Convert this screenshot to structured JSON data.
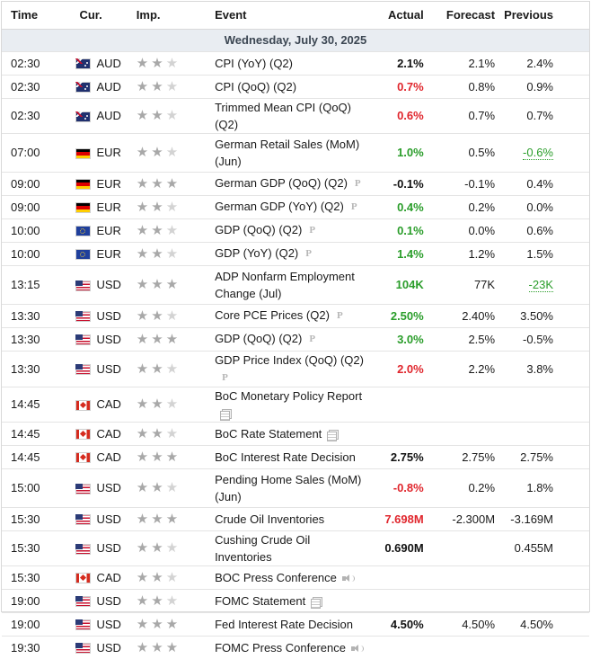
{
  "headers": {
    "time": "Time",
    "currency": "Cur.",
    "importance": "Imp.",
    "event": "Event",
    "actual": "Actual",
    "forecast": "Forecast",
    "previous": "Previous"
  },
  "date_row": "Wednesday, July 30, 2025",
  "colors": {
    "green": "#2a9d2a",
    "red": "#e0262d",
    "date_bg": "#e9edf2"
  },
  "rows": [
    {
      "time": "02:30",
      "cur": "AUD",
      "flag": "au-flag",
      "stars": 2,
      "event": "CPI (YoY) (Q2)",
      "icon": "",
      "actual": "2.1%",
      "actual_color": "black",
      "forecast": "2.1%",
      "previous": "2.4%",
      "prev_revised": false,
      "tall": false
    },
    {
      "time": "02:30",
      "cur": "AUD",
      "flag": "au-flag",
      "stars": 2,
      "event": "CPI (QoQ) (Q2)",
      "icon": "",
      "actual": "0.7%",
      "actual_color": "red",
      "forecast": "0.8%",
      "previous": "0.9%",
      "prev_revised": false,
      "tall": false
    },
    {
      "time": "02:30",
      "cur": "AUD",
      "flag": "au-flag",
      "stars": 2,
      "event": "Trimmed Mean CPI (QoQ) (Q2)",
      "icon": "",
      "actual": "0.6%",
      "actual_color": "red",
      "forecast": "0.7%",
      "previous": "0.7%",
      "prev_revised": false,
      "tall": false
    },
    {
      "time": "07:00",
      "cur": "EUR",
      "flag": "de-flag",
      "stars": 2,
      "event": "German Retail Sales (MoM) (Jun)",
      "icon": "",
      "actual": "1.0%",
      "actual_color": "green",
      "forecast": "0.5%",
      "previous": "-0.6%",
      "prev_revised": true,
      "tall": true
    },
    {
      "time": "09:00",
      "cur": "EUR",
      "flag": "de-flag",
      "stars": 3,
      "event": "German GDP (QoQ) (Q2)",
      "icon": "preliminary-icon",
      "actual": "-0.1%",
      "actual_color": "black",
      "forecast": "-0.1%",
      "previous": "0.4%",
      "prev_revised": false,
      "tall": false
    },
    {
      "time": "09:00",
      "cur": "EUR",
      "flag": "de-flag",
      "stars": 2,
      "event": "German GDP (YoY) (Q2)",
      "icon": "preliminary-icon",
      "actual": "0.4%",
      "actual_color": "green",
      "forecast": "0.2%",
      "previous": "0.0%",
      "prev_revised": false,
      "tall": false
    },
    {
      "time": "10:00",
      "cur": "EUR",
      "flag": "eu-flag",
      "stars": 2,
      "event": "GDP (QoQ) (Q2)",
      "icon": "preliminary-icon",
      "actual": "0.1%",
      "actual_color": "green",
      "forecast": "0.0%",
      "previous": "0.6%",
      "prev_revised": false,
      "tall": false
    },
    {
      "time": "10:00",
      "cur": "EUR",
      "flag": "eu-flag",
      "stars": 2,
      "event": "GDP (YoY) (Q2)",
      "icon": "preliminary-icon",
      "actual": "1.4%",
      "actual_color": "green",
      "forecast": "1.2%",
      "previous": "1.5%",
      "prev_revised": false,
      "tall": false
    },
    {
      "time": "13:15",
      "cur": "USD",
      "flag": "us-flag",
      "stars": 3,
      "event": "ADP Nonfarm Employment Change (Jul)",
      "icon": "",
      "actual": "104K",
      "actual_color": "green",
      "forecast": "77K",
      "previous": "-23K",
      "prev_revised": true,
      "tall": true
    },
    {
      "time": "13:30",
      "cur": "USD",
      "flag": "us-flag",
      "stars": 2,
      "event": "Core PCE Prices (Q2)",
      "icon": "preliminary-icon",
      "actual": "2.50%",
      "actual_color": "green",
      "forecast": "2.40%",
      "previous": "3.50%",
      "prev_revised": false,
      "tall": false
    },
    {
      "time": "13:30",
      "cur": "USD",
      "flag": "us-flag",
      "stars": 3,
      "event": "GDP (QoQ) (Q2)",
      "icon": "preliminary-icon",
      "actual": "3.0%",
      "actual_color": "green",
      "forecast": "2.5%",
      "previous": "-0.5%",
      "prev_revised": false,
      "tall": false
    },
    {
      "time": "13:30",
      "cur": "USD",
      "flag": "us-flag",
      "stars": 2,
      "event": "GDP Price Index (QoQ) (Q2)",
      "icon": "preliminary-icon",
      "actual": "2.0%",
      "actual_color": "red",
      "forecast": "2.2%",
      "previous": "3.8%",
      "prev_revised": false,
      "tall": false
    },
    {
      "time": "14:45",
      "cur": "CAD",
      "flag": "ca-flag",
      "stars": 2,
      "event": "BoC Monetary Policy Report",
      "icon": "document-icon",
      "actual": "",
      "actual_color": "black",
      "forecast": "",
      "previous": "",
      "prev_revised": false,
      "tall": false
    },
    {
      "time": "14:45",
      "cur": "CAD",
      "flag": "ca-flag",
      "stars": 2,
      "event": "BoC Rate Statement",
      "icon": "document-icon",
      "actual": "",
      "actual_color": "black",
      "forecast": "",
      "previous": "",
      "prev_revised": false,
      "tall": false
    },
    {
      "time": "14:45",
      "cur": "CAD",
      "flag": "ca-flag",
      "stars": 3,
      "event": "BoC Interest Rate Decision",
      "icon": "",
      "actual": "2.75%",
      "actual_color": "black",
      "forecast": "2.75%",
      "previous": "2.75%",
      "prev_revised": false,
      "tall": false
    },
    {
      "time": "15:00",
      "cur": "USD",
      "flag": "us-flag",
      "stars": 2,
      "event": "Pending Home Sales (MoM) (Jun)",
      "icon": "",
      "actual": "-0.8%",
      "actual_color": "red",
      "forecast": "0.2%",
      "previous": "1.8%",
      "prev_revised": false,
      "tall": true
    },
    {
      "time": "15:30",
      "cur": "USD",
      "flag": "us-flag",
      "stars": 3,
      "event": "Crude Oil Inventories",
      "icon": "",
      "actual": "7.698M",
      "actual_color": "red",
      "forecast": "-2.300M",
      "previous": "-3.169M",
      "prev_revised": false,
      "tall": false
    },
    {
      "time": "15:30",
      "cur": "USD",
      "flag": "us-flag",
      "stars": 2,
      "event": "Cushing Crude Oil Inventories",
      "icon": "",
      "actual": "0.690M",
      "actual_color": "black",
      "forecast": "",
      "previous": "0.455M",
      "prev_revised": false,
      "tall": false
    },
    {
      "time": "15:30",
      "cur": "CAD",
      "flag": "ca-flag",
      "stars": 2,
      "event": "BOC Press Conference",
      "icon": "speaker-icon",
      "actual": "",
      "actual_color": "black",
      "forecast": "",
      "previous": "",
      "prev_revised": false,
      "tall": false
    },
    {
      "time": "19:00",
      "cur": "USD",
      "flag": "us-flag",
      "stars": 2,
      "event": "FOMC Statement",
      "icon": "document-icon",
      "actual": "",
      "actual_color": "black",
      "forecast": "",
      "previous": "",
      "prev_revised": false,
      "tall": false
    },
    {
      "time": "19:00",
      "cur": "USD",
      "flag": "us-flag",
      "stars": 3,
      "event": "Fed Interest Rate Decision",
      "icon": "",
      "actual": "4.50%",
      "actual_color": "black",
      "forecast": "4.50%",
      "previous": "4.50%",
      "prev_revised": false,
      "tall": false
    },
    {
      "time": "19:30",
      "cur": "USD",
      "flag": "us-flag",
      "stars": 3,
      "event": "FOMC Press Conference",
      "icon": "speaker-icon",
      "actual": "",
      "actual_color": "black",
      "forecast": "",
      "previous": "",
      "prev_revised": false,
      "tall": false
    }
  ]
}
